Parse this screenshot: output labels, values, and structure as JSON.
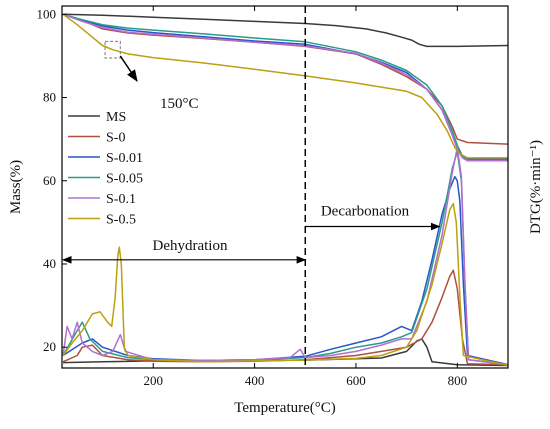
{
  "chart_data": {
    "type": "line",
    "xlabel": "Temperature(°C)",
    "ylabel": "Mass(%)",
    "y2label": "DTG(%·min⁻¹)",
    "xlim": [
      20,
      900
    ],
    "ylim": [
      15,
      102
    ],
    "x_ticks": [
      200,
      400,
      600,
      800
    ],
    "y_ticks": [
      20,
      40,
      60,
      80,
      100
    ],
    "grid": false,
    "legend_position": "left",
    "annotations": {
      "temp_marker": "150°C",
      "dehydration": "Dehydration",
      "decarbonation": "Decarbonation",
      "divider_x": 500,
      "dehydration_arrow_x": [
        22,
        500
      ],
      "dehydration_arrow_y": 41,
      "decarbonation_arrow_x": [
        500,
        765
      ],
      "decarbonation_arrow_y": 49,
      "marker_box": {
        "x": [
          105,
          135
        ],
        "y": [
          89.5,
          93.5
        ]
      },
      "marker_arrow": {
        "from": [
          135,
          90
        ],
        "to": [
          168,
          84
        ]
      }
    },
    "series": [
      {
        "name": "MS",
        "color": "#3a3a3a",
        "tg": [
          [
            22,
            100
          ],
          [
            100,
            99.8
          ],
          [
            200,
            99.3
          ],
          [
            300,
            98.8
          ],
          [
            400,
            98.3
          ],
          [
            500,
            97.8
          ],
          [
            560,
            97.3
          ],
          [
            620,
            96.5
          ],
          [
            660,
            95.5
          ],
          [
            690,
            94.5
          ],
          [
            710,
            93.8
          ],
          [
            725,
            92.8
          ],
          [
            740,
            92.3
          ],
          [
            800,
            92.3
          ],
          [
            900,
            92.5
          ]
        ],
        "dtg": [
          [
            22,
            16.3
          ],
          [
            100,
            16.5
          ],
          [
            200,
            16.7
          ],
          [
            300,
            16.7
          ],
          [
            400,
            16.8
          ],
          [
            500,
            16.9
          ],
          [
            600,
            17.2
          ],
          [
            650,
            17.4
          ],
          [
            700,
            19
          ],
          [
            720,
            21.5
          ],
          [
            730,
            22
          ],
          [
            740,
            20
          ],
          [
            750,
            16.5
          ],
          [
            800,
            15.8
          ],
          [
            900,
            15.6
          ]
        ]
      },
      {
        "name": "S-0",
        "color": "#b05040",
        "tg": [
          [
            22,
            100
          ],
          [
            60,
            98.5
          ],
          [
            100,
            96.5
          ],
          [
            150,
            95.5
          ],
          [
            200,
            95
          ],
          [
            300,
            94.2
          ],
          [
            400,
            93.3
          ],
          [
            500,
            92.3
          ],
          [
            600,
            90.5
          ],
          [
            650,
            88
          ],
          [
            700,
            85
          ],
          [
            740,
            82
          ],
          [
            770,
            78
          ],
          [
            790,
            73
          ],
          [
            800,
            70
          ],
          [
            820,
            69.2
          ],
          [
            900,
            68.8
          ]
        ],
        "dtg": [
          [
            22,
            16.5
          ],
          [
            50,
            18
          ],
          [
            60,
            20
          ],
          [
            80,
            20.5
          ],
          [
            100,
            18
          ],
          [
            150,
            17
          ],
          [
            200,
            16.6
          ],
          [
            300,
            16.5
          ],
          [
            400,
            16.6
          ],
          [
            500,
            17
          ],
          [
            600,
            18
          ],
          [
            650,
            19
          ],
          [
            700,
            20
          ],
          [
            730,
            22
          ],
          [
            750,
            26
          ],
          [
            770,
            32
          ],
          [
            785,
            37
          ],
          [
            792,
            38.5
          ],
          [
            800,
            34
          ],
          [
            810,
            22
          ],
          [
            820,
            16
          ],
          [
            900,
            15.8
          ]
        ]
      },
      {
        "name": "S-0.01",
        "color": "#2a55c8",
        "tg": [
          [
            22,
            100
          ],
          [
            60,
            98.5
          ],
          [
            100,
            97.2
          ],
          [
            150,
            96.2
          ],
          [
            200,
            95.6
          ],
          [
            300,
            94.6
          ],
          [
            400,
            93.6
          ],
          [
            500,
            92.8
          ],
          [
            600,
            90.5
          ],
          [
            650,
            88.5
          ],
          [
            700,
            86
          ],
          [
            740,
            82
          ],
          [
            770,
            77
          ],
          [
            790,
            71
          ],
          [
            800,
            68
          ],
          [
            810,
            66
          ],
          [
            820,
            65.2
          ],
          [
            900,
            65.2
          ]
        ],
        "dtg": [
          [
            22,
            18
          ],
          [
            60,
            21
          ],
          [
            80,
            22
          ],
          [
            100,
            20
          ],
          [
            150,
            18
          ],
          [
            200,
            17.2
          ],
          [
            300,
            16.8
          ],
          [
            400,
            17
          ],
          [
            500,
            17.8
          ],
          [
            550,
            19.5
          ],
          [
            600,
            21
          ],
          [
            650,
            22.5
          ],
          [
            690,
            25
          ],
          [
            710,
            24
          ],
          [
            730,
            31
          ],
          [
            750,
            41
          ],
          [
            770,
            52
          ],
          [
            785,
            58
          ],
          [
            795,
            61
          ],
          [
            800,
            60
          ],
          [
            805,
            55
          ],
          [
            812,
            35
          ],
          [
            820,
            18
          ],
          [
            900,
            15.8
          ]
        ]
      },
      {
        "name": "S-0.05",
        "color": "#2a9a8a",
        "tg": [
          [
            22,
            100
          ],
          [
            60,
            98.7
          ],
          [
            100,
            97.5
          ],
          [
            150,
            96.7
          ],
          [
            200,
            96.2
          ],
          [
            300,
            95.3
          ],
          [
            400,
            94.3
          ],
          [
            500,
            93.4
          ],
          [
            600,
            91
          ],
          [
            650,
            89
          ],
          [
            700,
            86.5
          ],
          [
            740,
            83
          ],
          [
            770,
            78
          ],
          [
            790,
            72
          ],
          [
            800,
            68.5
          ],
          [
            810,
            66
          ],
          [
            820,
            65
          ],
          [
            900,
            65
          ]
        ],
        "dtg": [
          [
            22,
            18
          ],
          [
            50,
            24
          ],
          [
            60,
            26
          ],
          [
            75,
            22
          ],
          [
            100,
            19
          ],
          [
            150,
            17.5
          ],
          [
            200,
            17
          ],
          [
            300,
            16.8
          ],
          [
            400,
            17
          ],
          [
            500,
            17.5
          ],
          [
            550,
            18.5
          ],
          [
            600,
            20
          ],
          [
            650,
            21
          ],
          [
            690,
            22.5
          ],
          [
            710,
            23.5
          ],
          [
            740,
            34
          ],
          [
            770,
            50
          ],
          [
            790,
            63
          ],
          [
            800,
            67
          ],
          [
            808,
            60
          ],
          [
            815,
            35
          ],
          [
            822,
            17
          ],
          [
            900,
            15.8
          ]
        ]
      },
      {
        "name": "S-0.1",
        "color": "#b070d0",
        "tg": [
          [
            22,
            100
          ],
          [
            60,
            98.3
          ],
          [
            100,
            96.8
          ],
          [
            150,
            95.7
          ],
          [
            200,
            95.2
          ],
          [
            300,
            94.3
          ],
          [
            400,
            93.3
          ],
          [
            500,
            92.4
          ],
          [
            600,
            90.6
          ],
          [
            650,
            88.3
          ],
          [
            700,
            85.5
          ],
          [
            740,
            82
          ],
          [
            770,
            77
          ],
          [
            790,
            71
          ],
          [
            800,
            67.5
          ],
          [
            810,
            65.5
          ],
          [
            820,
            64.8
          ],
          [
            900,
            64.8
          ]
        ],
        "dtg": [
          [
            22,
            18
          ],
          [
            30,
            25
          ],
          [
            40,
            22
          ],
          [
            50,
            26
          ],
          [
            60,
            21
          ],
          [
            80,
            19
          ],
          [
            100,
            18
          ],
          [
            120,
            19
          ],
          [
            135,
            23
          ],
          [
            145,
            19
          ],
          [
            200,
            17
          ],
          [
            300,
            16.8
          ],
          [
            400,
            17
          ],
          [
            470,
            17.5
          ],
          [
            490,
            19.5
          ],
          [
            500,
            17.5
          ],
          [
            550,
            18
          ],
          [
            600,
            19
          ],
          [
            650,
            20.5
          ],
          [
            690,
            22
          ],
          [
            710,
            22
          ],
          [
            740,
            31
          ],
          [
            770,
            47
          ],
          [
            790,
            62
          ],
          [
            800,
            68
          ],
          [
            808,
            61
          ],
          [
            815,
            36
          ],
          [
            822,
            17
          ],
          [
            900,
            15.8
          ]
        ]
      },
      {
        "name": "S-0.5",
        "color": "#bba010",
        "tg": [
          [
            22,
            100
          ],
          [
            50,
            97.5
          ],
          [
            80,
            94.5
          ],
          [
            100,
            92.5
          ],
          [
            120,
            91.5
          ],
          [
            150,
            90.5
          ],
          [
            200,
            89.6
          ],
          [
            300,
            88.3
          ],
          [
            400,
            86.8
          ],
          [
            500,
            85.2
          ],
          [
            600,
            83.5
          ],
          [
            650,
            82.5
          ],
          [
            700,
            81.5
          ],
          [
            730,
            80
          ],
          [
            760,
            76
          ],
          [
            780,
            72
          ],
          [
            795,
            68
          ],
          [
            805,
            66.5
          ],
          [
            820,
            65.5
          ],
          [
            900,
            65.5
          ]
        ],
        "dtg": [
          [
            22,
            18
          ],
          [
            40,
            21
          ],
          [
            60,
            24
          ],
          [
            80,
            28
          ],
          [
            95,
            28.5
          ],
          [
            110,
            26
          ],
          [
            118,
            25
          ],
          [
            125,
            32
          ],
          [
            130,
            42
          ],
          [
            133,
            44
          ],
          [
            137,
            40
          ],
          [
            143,
            20
          ],
          [
            150,
            18
          ],
          [
            200,
            17
          ],
          [
            300,
            16.5
          ],
          [
            400,
            16.7
          ],
          [
            500,
            16.9
          ],
          [
            600,
            17.3
          ],
          [
            650,
            18
          ],
          [
            700,
            20
          ],
          [
            720,
            24
          ],
          [
            750,
            35
          ],
          [
            770,
            45
          ],
          [
            785,
            53
          ],
          [
            792,
            54.5
          ],
          [
            798,
            50
          ],
          [
            805,
            32
          ],
          [
            812,
            18
          ],
          [
            900,
            15.6
          ]
        ]
      }
    ]
  }
}
